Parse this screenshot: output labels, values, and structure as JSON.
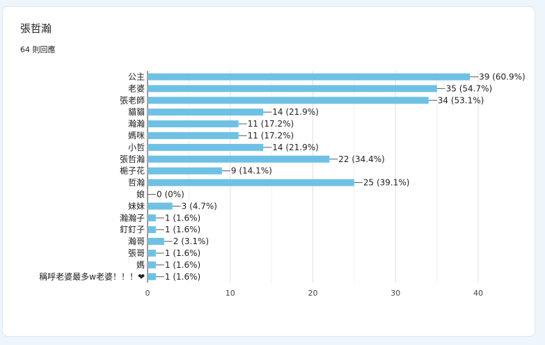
{
  "question": {
    "title": "張哲瀚",
    "response_count": "64 則回應"
  },
  "chart_data": {
    "type": "bar",
    "orientation": "horizontal",
    "categories": [
      "公主",
      "老婆",
      "張老師",
      "貓貓",
      "瀚瀚",
      "媽咪",
      "小哲",
      "張哲瀚",
      "梔子花",
      "哲瀚",
      "娘",
      "妹妹",
      "瀚瀚子",
      "釘釘子",
      "瀚哥",
      "張哥",
      "媽",
      "稱呼老婆最多w老婆！！！❤"
    ],
    "values": [
      39,
      35,
      34,
      14,
      11,
      11,
      14,
      22,
      9,
      25,
      0,
      3,
      1,
      1,
      2,
      1,
      1,
      1
    ],
    "value_labels": [
      "39 (60.9%)",
      "35 (54.7%)",
      "34 (53.1%)",
      "14 (21.9%)",
      "11 (17.2%)",
      "11 (17.2%)",
      "14 (21.9%)",
      "22 (34.4%)",
      "9 (14.1%)",
      "25 (39.1%)",
      "0 (0%)",
      "3 (4.7%)",
      "1 (1.6%)",
      "1 (1.6%)",
      "2 (3.1%)",
      "1 (1.6%)",
      "1 (1.6%)",
      "1 (1.6%)"
    ],
    "xlim": [
      0,
      40
    ],
    "xticks": [
      0,
      10,
      20,
      30,
      40
    ],
    "grid": true,
    "bar_color": "#6ec1e4"
  }
}
